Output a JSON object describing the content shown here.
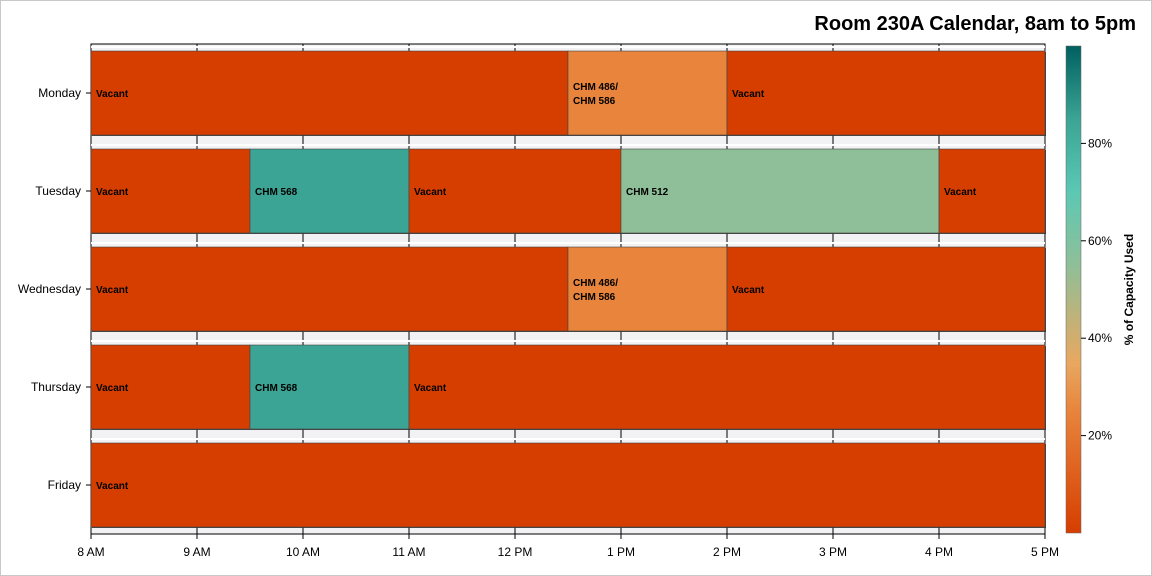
{
  "chart_data": {
    "type": "gantt",
    "title": "Room 230A Calendar, 8am to 5pm",
    "x_ticks": [
      "8 AM",
      "9 AM",
      "10 AM",
      "11 AM",
      "12 PM",
      "1 PM",
      "2 PM",
      "3 PM",
      "4 PM",
      "5 PM"
    ],
    "xlim_hours": [
      8,
      17
    ],
    "grid": true,
    "days": [
      {
        "day": "Monday",
        "segments": [
          {
            "start": 8,
            "end": 12.5,
            "label": "Vacant",
            "capacity_pct": 0
          },
          {
            "start": 12.5,
            "end": 14,
            "label": "CHM 486/\nCHM 586",
            "capacity_pct": 25
          },
          {
            "start": 14,
            "end": 17,
            "label": "Vacant",
            "capacity_pct": 0
          }
        ]
      },
      {
        "day": "Tuesday",
        "segments": [
          {
            "start": 8,
            "end": 9.5,
            "label": "Vacant",
            "capacity_pct": 0
          },
          {
            "start": 9.5,
            "end": 11,
            "label": "CHM 568",
            "capacity_pct": 85
          },
          {
            "start": 11,
            "end": 13,
            "label": "Vacant",
            "capacity_pct": 0
          },
          {
            "start": 13,
            "end": 16,
            "label": "CHM 512",
            "capacity_pct": 55
          },
          {
            "start": 16,
            "end": 17,
            "label": "Vacant",
            "capacity_pct": 0
          }
        ]
      },
      {
        "day": "Wednesday",
        "segments": [
          {
            "start": 8,
            "end": 12.5,
            "label": "Vacant",
            "capacity_pct": 0
          },
          {
            "start": 12.5,
            "end": 14,
            "label": "CHM 486/\nCHM 586",
            "capacity_pct": 25
          },
          {
            "start": 14,
            "end": 17,
            "label": "Vacant",
            "capacity_pct": 0
          }
        ]
      },
      {
        "day": "Thursday",
        "segments": [
          {
            "start": 8,
            "end": 9.5,
            "label": "Vacant",
            "capacity_pct": 0
          },
          {
            "start": 9.5,
            "end": 11,
            "label": "CHM 568",
            "capacity_pct": 85
          },
          {
            "start": 11,
            "end": 17,
            "label": "Vacant",
            "capacity_pct": 0
          }
        ]
      },
      {
        "day": "Friday",
        "segments": [
          {
            "start": 8,
            "end": 17,
            "label": "Vacant",
            "capacity_pct": 0
          }
        ]
      }
    ],
    "colorbar": {
      "label": "% of Capacity Used",
      "range": [
        0,
        100
      ],
      "ticks": [
        {
          "value": 20,
          "label": "20%"
        },
        {
          "value": 40,
          "label": "40%"
        },
        {
          "value": 60,
          "label": "60%"
        },
        {
          "value": 80,
          "label": "80%"
        }
      ],
      "stops": [
        {
          "value": 0,
          "color": "#d63e00"
        },
        {
          "value": 25,
          "color": "#e8843c"
        },
        {
          "value": 35,
          "color": "#e8a860"
        },
        {
          "value": 55,
          "color": "#8fbf98"
        },
        {
          "value": 70,
          "color": "#5cc8b4"
        },
        {
          "value": 85,
          "color": "#3ba494"
        },
        {
          "value": 100,
          "color": "#006060"
        }
      ]
    }
  }
}
